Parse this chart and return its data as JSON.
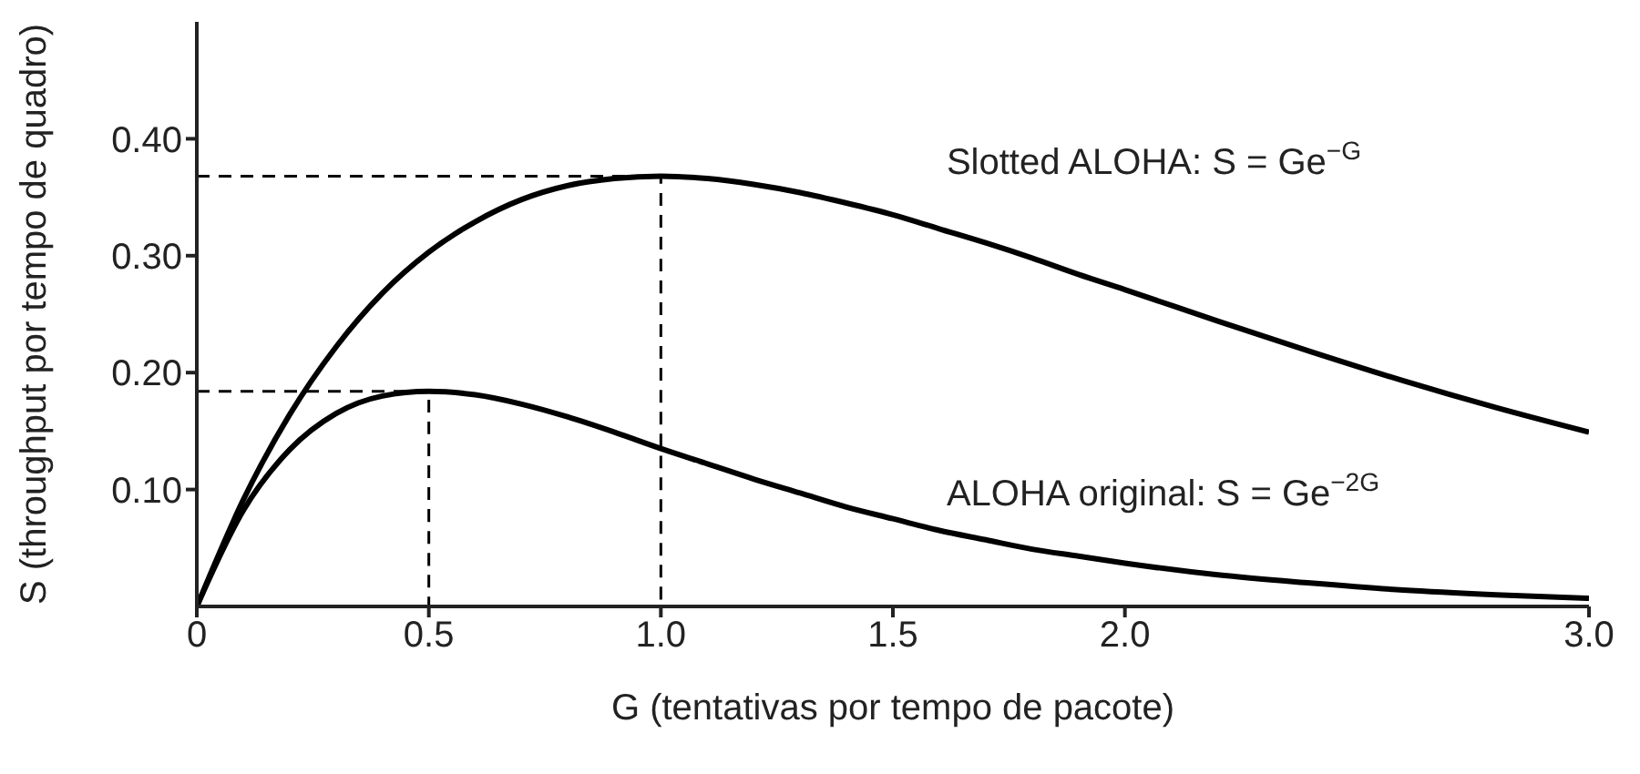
{
  "chart_data": {
    "type": "line",
    "xlabel": "G (tentativas por tempo de pacote)",
    "ylabel": "S (throughput por tempo de quadro)",
    "xlim": [
      0,
      3
    ],
    "xticks": [
      0,
      {
        "value": 0.5,
        "label": "0.5"
      },
      {
        "value": 1,
        "label": "1.0"
      },
      {
        "value": 1.5,
        "label": "1.5"
      },
      {
        "value": 2,
        "label": "2.0"
      },
      {
        "value": 3,
        "label": "3.0"
      }
    ],
    "ylim": [
      0,
      0.5
    ],
    "yticks": [
      {
        "value": 0.1,
        "label": "0.10"
      },
      {
        "value": 0.2,
        "label": "0.20"
      },
      {
        "value": 0.3,
        "label": "0.30"
      },
      {
        "value": 0.4,
        "label": "0.40"
      }
    ],
    "marker": "none",
    "series": [
      {
        "name": "Slotted ALOHA: S = Ge$^{−G}$",
        "color": "#000000",
        "line_style": "solid",
        "x": [
          0,
          0.1,
          0.2,
          0.3,
          0.4,
          0.5,
          0.6,
          0.7,
          0.8,
          0.9,
          1,
          1.1,
          1.2,
          1.3,
          1.4,
          1.5,
          1.6,
          1.7,
          1.8,
          1.9,
          2,
          2.2,
          2.4,
          2.6,
          2.8,
          3
        ],
        "values": [
          0,
          0.091,
          0.164,
          0.222,
          0.268,
          0.303,
          0.329,
          0.348,
          0.36,
          0.366,
          0.368,
          0.366,
          0.361,
          0.354,
          0.345,
          0.335,
          0.323,
          0.311,
          0.298,
          0.284,
          0.271,
          0.244,
          0.218,
          0.193,
          0.17,
          0.149
        ]
      },
      {
        "name": "ALOHA original: S = Ge$^{−2G}$",
        "color": "#000000",
        "line_style": "solid",
        "x": [
          0,
          0.1,
          0.2,
          0.3,
          0.4,
          0.5,
          0.6,
          0.7,
          0.8,
          0.9,
          1,
          1.1,
          1.2,
          1.3,
          1.4,
          1.5,
          1.6,
          1.7,
          1.8,
          1.9,
          2,
          2.2,
          2.4,
          2.6,
          2.8,
          3
        ],
        "values": [
          0,
          0.082,
          0.134,
          0.165,
          0.18,
          0.184,
          0.181,
          0.173,
          0.162,
          0.149,
          0.135,
          0.122,
          0.109,
          0.097,
          0.085,
          0.075,
          0.065,
          0.057,
          0.049,
          0.043,
          0.037,
          0.027,
          0.02,
          0.014,
          0.01,
          0.007
        ]
      },
      {
        "color": "#000000",
        "line_style": "dashed",
        "x": [
          0,
          1,
          1
        ],
        "values": [
          0.368,
          0.368,
          0
        ]
      },
      {
        "color": "#000000",
        "line_style": "dashed",
        "x": [
          0,
          0.5,
          0.5
        ],
        "values": [
          0.184,
          0.184,
          0
        ]
      }
    ]
  }
}
